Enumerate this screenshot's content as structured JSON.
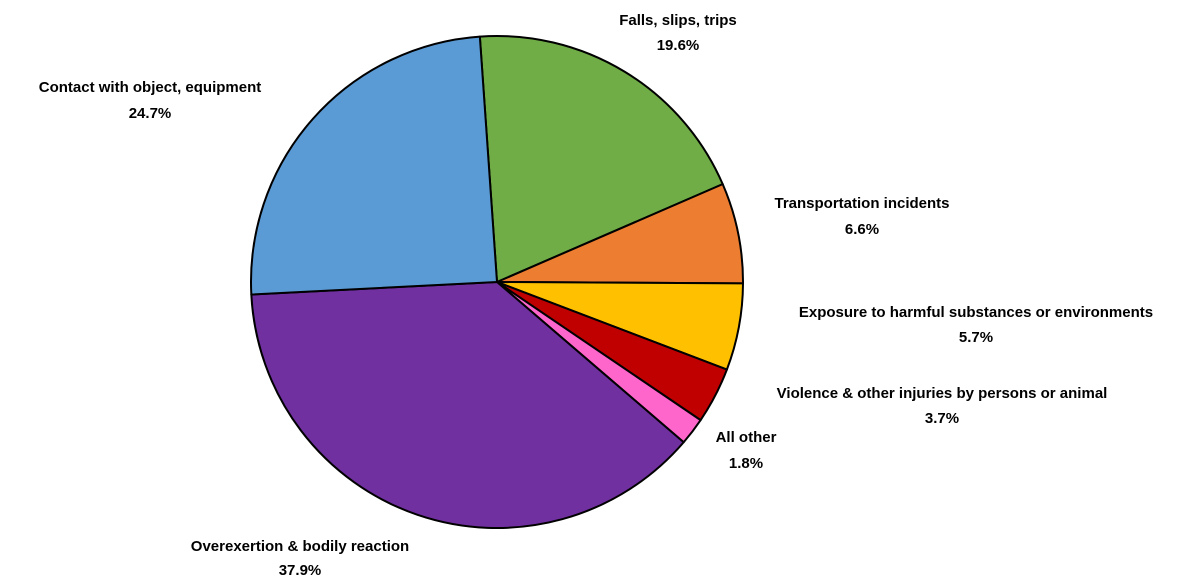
{
  "chart_data": {
    "type": "pie",
    "title": "",
    "categories": [
      "Falls, slips, trips",
      "Transportation incidents",
      "Exposure to harmful substances or environments",
      "Violence & other injuries by persons or animal",
      "All other",
      "Overexertion & bodily reaction",
      "Contact with object, equipment"
    ],
    "values": [
      19.6,
      6.6,
      5.7,
      3.7,
      1.8,
      37.9,
      24.7
    ],
    "value_labels": [
      "19.6%",
      "6.6%",
      "5.7%",
      "3.7%",
      "1.8%",
      "37.9%",
      "24.7%"
    ],
    "colors": [
      "#70AD47",
      "#ED7D31",
      "#FFC000",
      "#C00000",
      "#FF66CC",
      "#7030A0",
      "#5B9BD5"
    ],
    "start_angle_deg": -4,
    "direction": "clockwise",
    "legend": "none (labels placed outside slices)"
  }
}
